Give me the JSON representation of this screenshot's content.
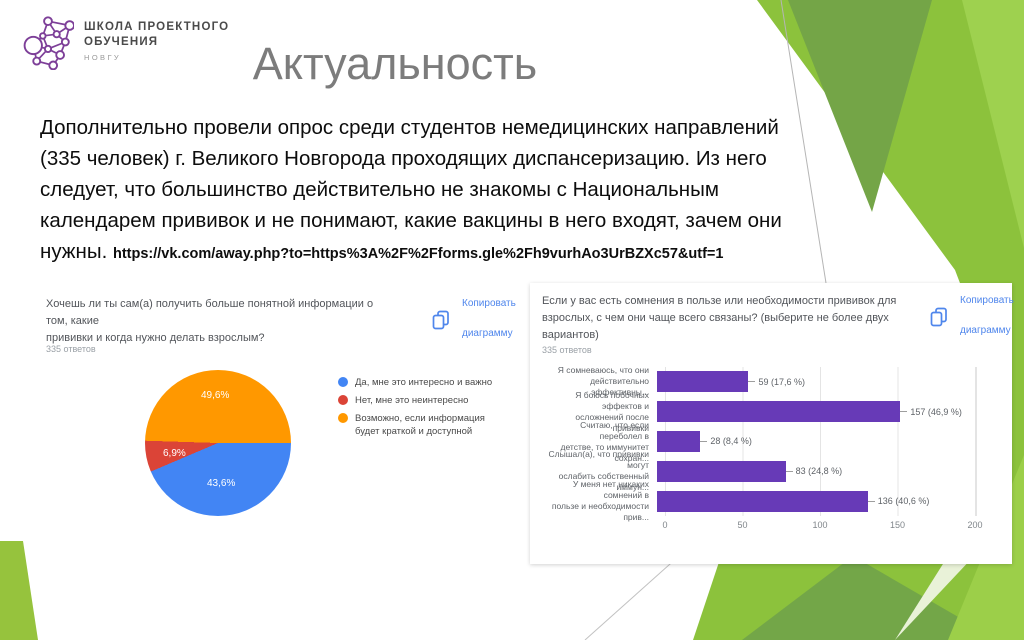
{
  "slide": {
    "logo": {
      "line1": "ШКОЛА ПРОЕКТНОГО",
      "line2": "ОБУЧЕНИЯ",
      "line3": "НОВГУ"
    },
    "title": "Актуальность",
    "body": {
      "lines": [
        "Дополнительно провели опрос среди студентов немедицинских направлений",
        "(335 человек) г. Великого Новгорода проходящих диспансеризацию. Из него",
        "следует, что большинство действительно не знакомы с Национальным",
        "календарем прививок и не понимают, какие вакцины в него входят, зачем они"
      ],
      "last_word": "нужны.",
      "link": "https://vk.com/away.php?to=https%3A%2F%2Fforms.gle%2Fh9vurhAo3UrBZXc57&utf=1"
    }
  },
  "copy_button": {
    "label_line1": "Копировать",
    "label_line2": "диаграмму"
  },
  "colors": {
    "accent_green": "#8cc23c",
    "link_blue": "#4f86ec",
    "title_gray": "#7c7c7c",
    "logo_purple": "#7d3f98"
  },
  "chart_data": [
    {
      "type": "pie",
      "title_lines": [
        "Хочешь ли ты сам(а) получить больше понятной информации о том, какие",
        "прививки и когда нужно делать взрослым?"
      ],
      "responses_label": "335 ответов",
      "labels": [
        "Да, мне это интересно и важно",
        "Нет, мне это неинтересно",
        "Возможно, если информация будет краткой и доступной"
      ],
      "values_pct": [
        43.6,
        6.9,
        49.6
      ],
      "display_labels": [
        "43,6%",
        "6,9%",
        "49,6%"
      ],
      "colors": [
        "#4285f4",
        "#db4437",
        "#ff9800"
      ],
      "legend_position": "right"
    },
    {
      "type": "bar",
      "orientation": "horizontal",
      "title_lines": [
        "Если у вас есть сомнения в пользе или необходимости прививок для",
        "взрослых, с чем они чаще всего связаны? (выберите не более двух",
        "вариантов)"
      ],
      "responses_label": "335 ответов",
      "categories": [
        [
          "Я сомневаюсь, что они",
          "действительно эффективны..."
        ],
        [
          "Я боюсь побочных эффектов и",
          "осложнений после прививки"
        ],
        [
          "Считаю, что если переболел в",
          "детстве, то иммунитет сохран..."
        ],
        [
          "Слышал(а), что прививки могут",
          "ослабить собственный иммун..."
        ],
        [
          "У меня нет никаких сомнений в",
          "пользе и необходимости прив..."
        ]
      ],
      "values": [
        59,
        157,
        28,
        83,
        136
      ],
      "value_labels": [
        "59 (17,6 %)",
        "157 (46,9 %)",
        "28 (8,4 %)",
        "83 (24,8 %)",
        "136 (40,6 %)"
      ],
      "x_ticks": [
        0,
        50,
        100,
        150,
        200
      ],
      "xlim": [
        0,
        200
      ],
      "bar_color": "#673ab7",
      "grid": true
    }
  ]
}
